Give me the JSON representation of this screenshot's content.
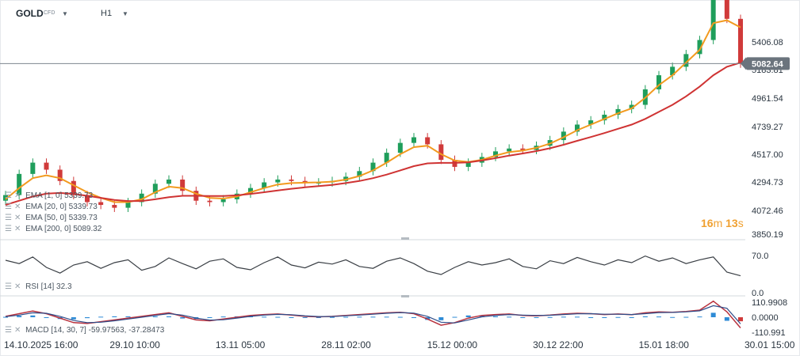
{
  "header": {
    "symbol": "GOLD",
    "type_badge": "CFD",
    "timeframe": "H1",
    "countdown": {
      "minutes": "16",
      "min_unit": "m",
      "seconds": "13",
      "sec_unit": "s"
    }
  },
  "indicators": {
    "ema_legend": [
      {
        "label": "EMA",
        "param1": "[1",
        "param2": "0]",
        "value": "5339.73"
      },
      {
        "label": "EMA",
        "param1": "[20",
        "param2": "0]",
        "value": "5339.73"
      },
      {
        "label": "EMA",
        "param1": "[50",
        "param2": "0]",
        "value": "5339.73"
      },
      {
        "label": "EMA",
        "param1": "[200",
        "param2": "0]",
        "value": "5089.32"
      }
    ],
    "rsi_legend": "RSI [14] 32.3",
    "macd_legend": "MACD [14, 30, 7] -59.97563, -37.28473"
  },
  "colors": {
    "candle_up": "#1f9e5b",
    "candle_down": "#d03a3a",
    "ema_fast": "#f29a1f",
    "ema_slow": "#cf3333",
    "rsi_line": "#3a3f45",
    "macd_line": "#b8323e",
    "signal_line": "#2e4d8a",
    "histogram": "#2e8bd6",
    "price_tag": "#6b747d",
    "countdown": "#f0a030"
  },
  "chart_data": [
    {
      "type": "line",
      "subtype": "candlestick",
      "title": "GOLD",
      "ylim": [
        3850.19,
        5500
      ],
      "y_ticks": [
        "5406.08",
        "5183.81",
        "4961.54",
        "4739.27",
        "4517.00",
        "4294.73",
        "4072.46",
        "3850.19"
      ],
      "x_ticks": [
        "14.10.2025 16:00",
        "29.10 10:00",
        "13.11 05:00",
        "28.11 02:00",
        "15.12 00:00",
        "30.12 22:00",
        "15.01 18:00",
        "30.01 15:00"
      ],
      "current_price": "5082.64",
      "series": [
        {
          "values": [
            4150,
            4300,
            4380,
            4330,
            4250,
            4150,
            4100,
            4080,
            4060,
            4100,
            4160,
            4230,
            4260,
            4180,
            4110,
            4100,
            4120,
            4160,
            4200,
            4240,
            4260,
            4250,
            4240,
            4240,
            4250,
            4280,
            4320,
            4380,
            4450,
            4520,
            4560,
            4510,
            4400,
            4350,
            4380,
            4420,
            4460,
            4480,
            4470,
            4500,
            4540,
            4600,
            4650,
            4680,
            4720,
            4760,
            4790,
            4900,
            5000,
            5060,
            5150,
            5250,
            5550,
            5400,
            5082.64
          ]
        },
        {
          "name": "EMA [50, 0]",
          "values": [
            4120,
            4200,
            4270,
            4290,
            4270,
            4220,
            4170,
            4130,
            4100,
            4100,
            4120,
            4170,
            4210,
            4200,
            4160,
            4130,
            4125,
            4140,
            4170,
            4200,
            4225,
            4235,
            4238,
            4240,
            4245,
            4260,
            4285,
            4325,
            4380,
            4440,
            4490,
            4500,
            4440,
            4395,
            4385,
            4400,
            4430,
            4455,
            4465,
            4485,
            4515,
            4560,
            4610,
            4650,
            4690,
            4730,
            4765,
            4840,
            4930,
            5000,
            5090,
            5180,
            5370,
            5390,
            5339.73
          ]
        },
        {
          "name": "EMA [200, 0]",
          "values": [
            4080,
            4110,
            4140,
            4160,
            4165,
            4158,
            4145,
            4130,
            4115,
            4108,
            4108,
            4120,
            4135,
            4145,
            4145,
            4143,
            4143,
            4148,
            4158,
            4170,
            4183,
            4195,
            4205,
            4213,
            4222,
            4235,
            4250,
            4270,
            4295,
            4325,
            4355,
            4375,
            4378,
            4378,
            4382,
            4395,
            4412,
            4430,
            4445,
            4462,
            4482,
            4507,
            4535,
            4562,
            4590,
            4620,
            4650,
            4690,
            4740,
            4790,
            4850,
            4920,
            5000,
            5060,
            5089.32
          ]
        }
      ]
    },
    {
      "type": "line",
      "title": "RSI [14] 32.3",
      "ylim": [
        0,
        100
      ],
      "y_ticks": [
        "70.0",
        "0.0"
      ],
      "series": [
        {
          "values": [
            65,
            58,
            72,
            50,
            38,
            55,
            62,
            48,
            60,
            66,
            44,
            52,
            70,
            58,
            47,
            63,
            68,
            50,
            45,
            60,
            72,
            55,
            49,
            61,
            57,
            66,
            52,
            48,
            63,
            70,
            58,
            42,
            35,
            50,
            62,
            55,
            60,
            68,
            52,
            47,
            64,
            58,
            71,
            62,
            55,
            66,
            60,
            74,
            63,
            70,
            58,
            66,
            72,
            40,
            32.3
          ]
        }
      ]
    },
    {
      "type": "line",
      "title": "MACD [14, 30, 7] -59.97563, -37.28473",
      "ylim": [
        -110.991,
        110.9908
      ],
      "y_ticks": [
        "110.9908",
        "0.0000",
        "-110.991"
      ],
      "series": [
        {
          "values": [
            5,
            20,
            35,
            20,
            -5,
            -30,
            -35,
            -25,
            -15,
            -5,
            5,
            15,
            25,
            5,
            -15,
            -20,
            -10,
            0,
            10,
            15,
            18,
            12,
            5,
            2,
            5,
            10,
            15,
            20,
            25,
            28,
            20,
            -10,
            -45,
            -30,
            -5,
            10,
            15,
            18,
            10,
            8,
            12,
            18,
            22,
            20,
            15,
            18,
            14,
            25,
            30,
            28,
            32,
            40,
            90,
            30,
            -59.97563
          ]
        },
        {
          "values": [
            3,
            12,
            25,
            22,
            5,
            -18,
            -30,
            -28,
            -20,
            -10,
            0,
            10,
            20,
            12,
            -5,
            -16,
            -14,
            -5,
            5,
            12,
            16,
            14,
            8,
            4,
            4,
            8,
            12,
            17,
            22,
            26,
            23,
            5,
            -28,
            -32,
            -15,
            2,
            10,
            15,
            12,
            10,
            11,
            15,
            19,
            20,
            17,
            17,
            15,
            20,
            26,
            27,
            30,
            36,
            65,
            50,
            -37.28473
          ]
        }
      ]
    }
  ]
}
